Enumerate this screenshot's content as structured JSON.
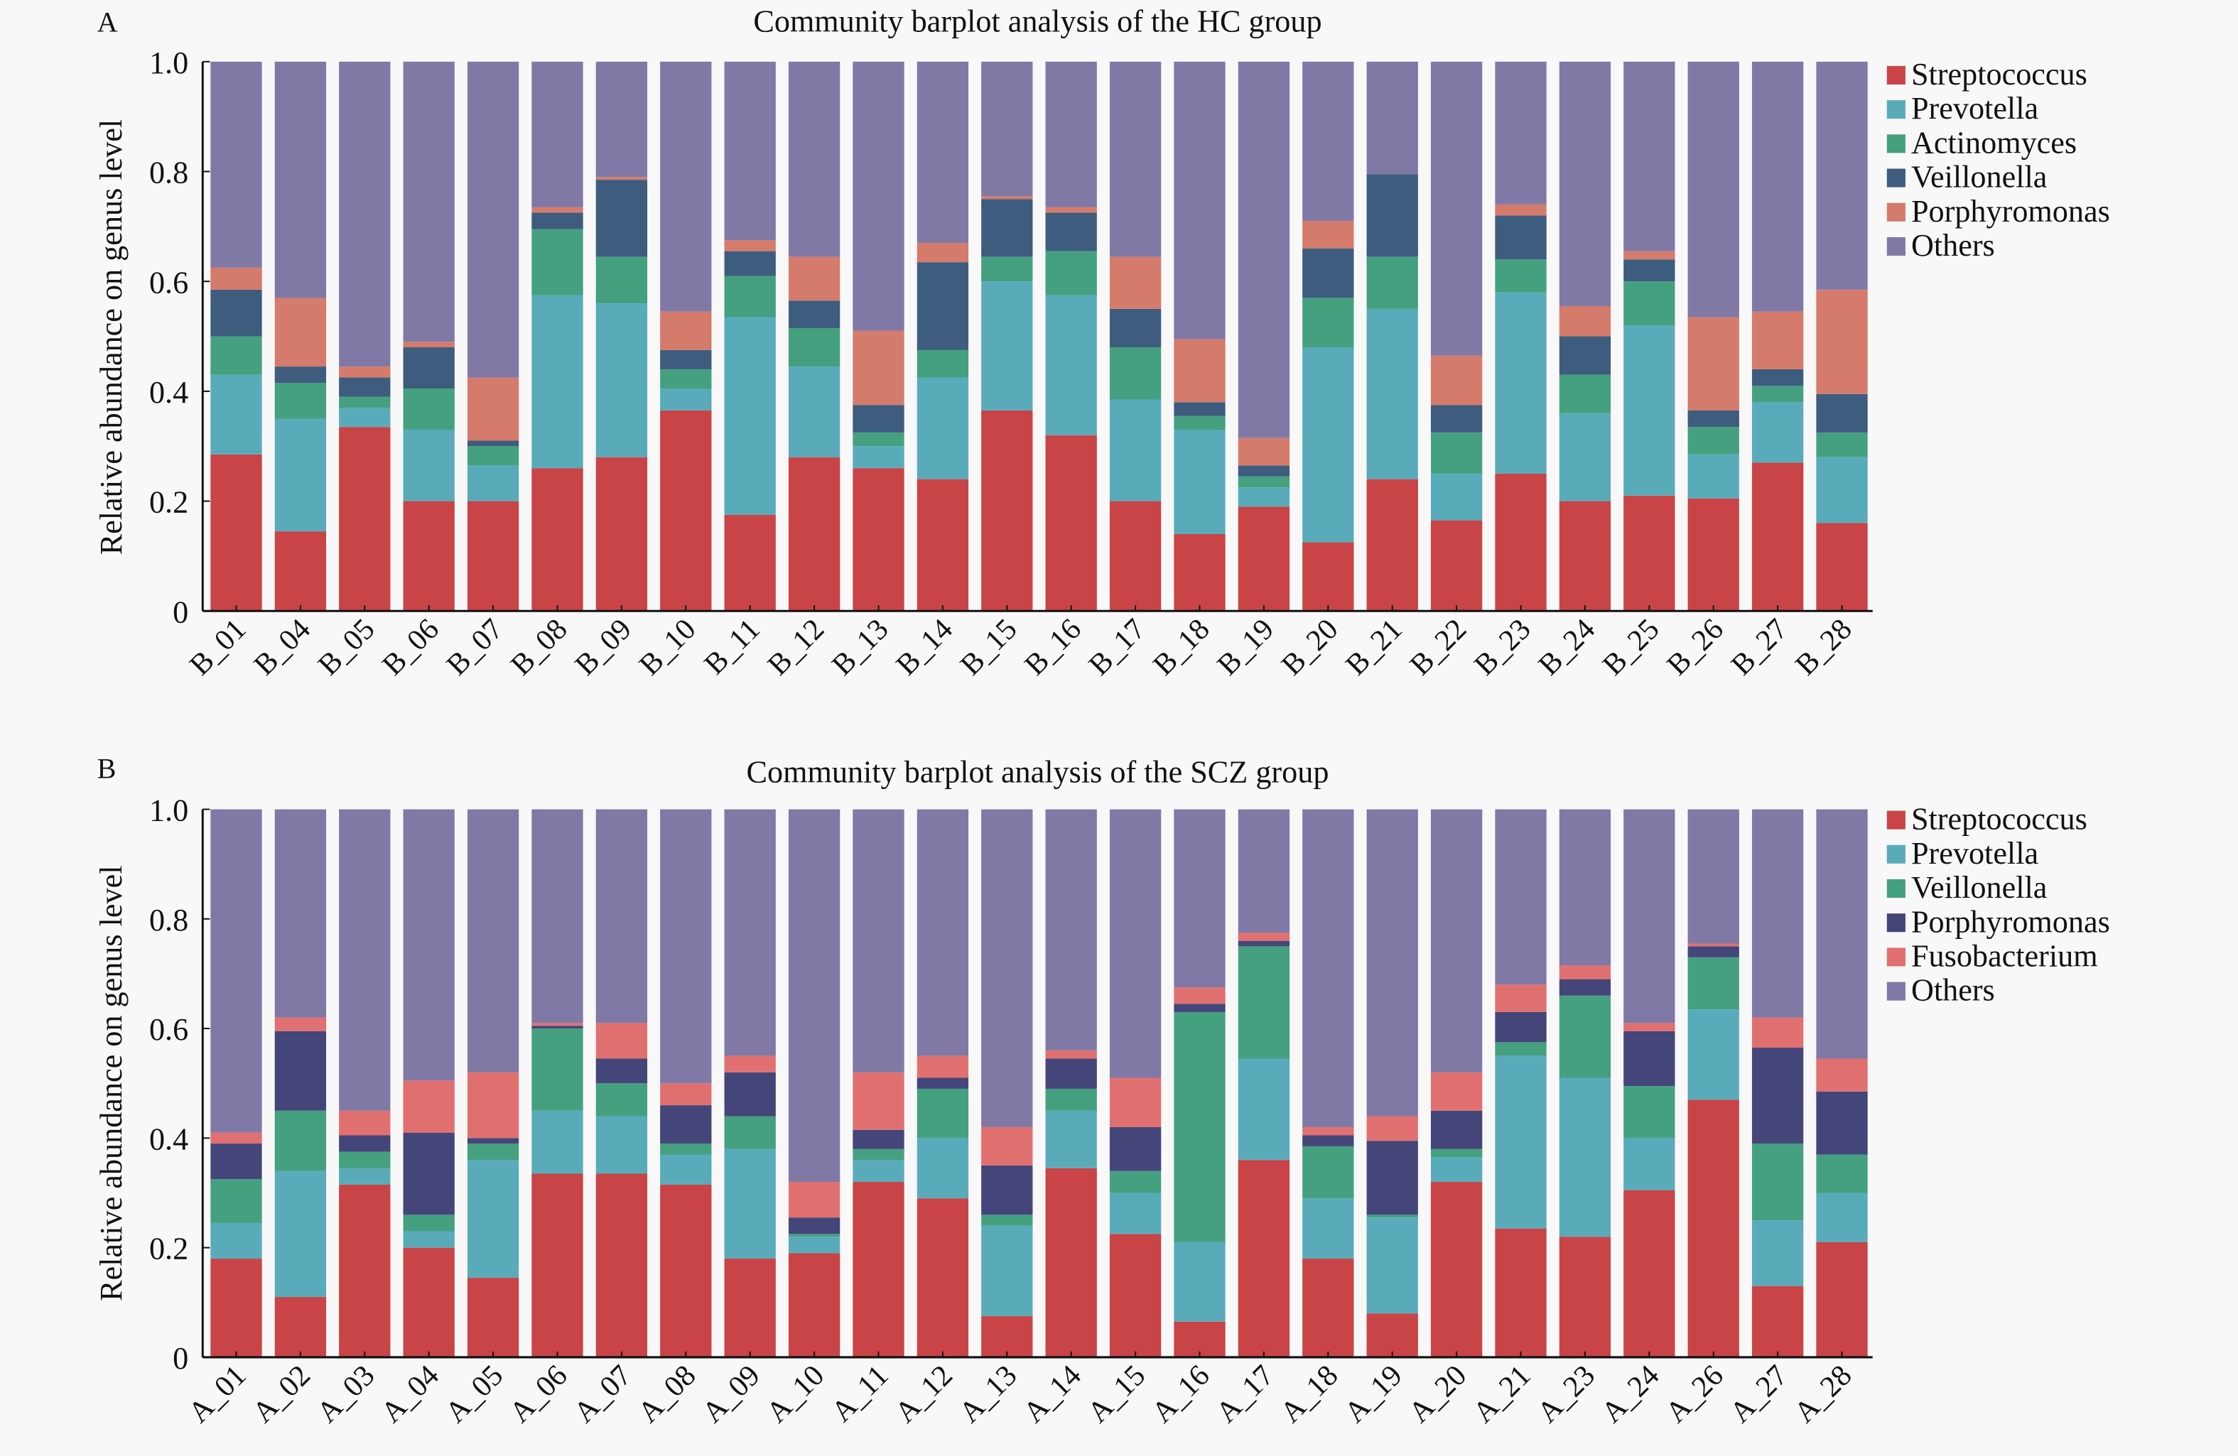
{
  "chart_data": [
    {
      "type": "bar",
      "stacked": true,
      "panel_label": "A",
      "title": "Community barplot analysis of the HC group",
      "xlabel": "",
      "ylabel": "Relative abundance on genus level",
      "ylim": [
        0,
        1.0
      ],
      "yticks": [
        "0",
        "0.2",
        "0.4",
        "0.6",
        "0.8",
        "1.0"
      ],
      "ytick_values": [
        0,
        0.2,
        0.4,
        0.6,
        0.8,
        1.0
      ],
      "legend_position": "right",
      "categories": [
        "B_01",
        "B_04",
        "B_05",
        "B_06",
        "B_07",
        "B_08",
        "B_09",
        "B_10",
        "B_11",
        "B_12",
        "B_13",
        "B_14",
        "B_15",
        "B_16",
        "B_17",
        "B_18",
        "B_19",
        "B_20",
        "B_21",
        "B_22",
        "B_23",
        "B_24",
        "B_25",
        "B_26",
        "B_27",
        "B_28"
      ],
      "series": [
        {
          "name": "Streptococcus",
          "color": "#c84446",
          "values": [
            0.285,
            0.145,
            0.335,
            0.2,
            0.2,
            0.26,
            0.28,
            0.365,
            0.175,
            0.28,
            0.26,
            0.24,
            0.365,
            0.32,
            0.2,
            0.14,
            0.19,
            0.125,
            0.24,
            0.165,
            0.25,
            0.2,
            0.21,
            0.205,
            0.27,
            0.16
          ]
        },
        {
          "name": "Prevotella",
          "color": "#5aabba",
          "values": [
            0.145,
            0.205,
            0.035,
            0.13,
            0.065,
            0.315,
            0.28,
            0.04,
            0.36,
            0.165,
            0.04,
            0.185,
            0.235,
            0.255,
            0.185,
            0.19,
            0.035,
            0.355,
            0.31,
            0.085,
            0.33,
            0.16,
            0.31,
            0.08,
            0.11,
            0.12
          ]
        },
        {
          "name": "Actinomyces",
          "color": "#45a080",
          "values": [
            0.07,
            0.065,
            0.02,
            0.075,
            0.035,
            0.12,
            0.085,
            0.035,
            0.075,
            0.07,
            0.025,
            0.05,
            0.045,
            0.08,
            0.095,
            0.025,
            0.02,
            0.09,
            0.095,
            0.075,
            0.06,
            0.07,
            0.08,
            0.05,
            0.03,
            0.045
          ]
        },
        {
          "name": "Veillonella",
          "color": "#3d5c7e",
          "values": [
            0.085,
            0.03,
            0.035,
            0.075,
            0.01,
            0.03,
            0.14,
            0.035,
            0.045,
            0.05,
            0.05,
            0.16,
            0.105,
            0.07,
            0.07,
            0.025,
            0.02,
            0.09,
            0.15,
            0.05,
            0.08,
            0.07,
            0.04,
            0.03,
            0.03,
            0.07
          ]
        },
        {
          "name": "Porphyromonas",
          "color": "#d47b6c",
          "values": [
            0.04,
            0.125,
            0.02,
            0.01,
            0.115,
            0.01,
            0.005,
            0.07,
            0.02,
            0.08,
            0.135,
            0.035,
            0.005,
            0.01,
            0.095,
            0.115,
            0.05,
            0.05,
            0.0,
            0.09,
            0.02,
            0.055,
            0.015,
            0.17,
            0.105,
            0.19
          ]
        },
        {
          "name": "Others",
          "color": "#8079a6",
          "values": [
            0.375,
            0.43,
            0.555,
            0.51,
            0.575,
            0.265,
            0.21,
            0.455,
            0.325,
            0.355,
            0.49,
            0.33,
            0.245,
            0.265,
            0.355,
            0.505,
            0.685,
            0.29,
            0.205,
            0.535,
            0.26,
            0.445,
            0.345,
            0.465,
            0.455,
            0.415
          ]
        }
      ]
    },
    {
      "type": "bar",
      "stacked": true,
      "panel_label": "B",
      "title": "Community barplot analysis of the SCZ group",
      "xlabel": "",
      "ylabel": "Relative abundance on genus level",
      "ylim": [
        0,
        1.0
      ],
      "yticks": [
        "0",
        "0.2",
        "0.4",
        "0.6",
        "0.8",
        "1.0"
      ],
      "ytick_values": [
        0,
        0.2,
        0.4,
        0.6,
        0.8,
        1.0
      ],
      "legend_position": "right",
      "categories": [
        "A_01",
        "A_02",
        "A_03",
        "A_04",
        "A_05",
        "A_06",
        "A_07",
        "A_08",
        "A_09",
        "A_10",
        "A_11",
        "A_12",
        "A_13",
        "A_14",
        "A_15",
        "A_16",
        "A_17",
        "A_18",
        "A_19",
        "A_20",
        "A_21",
        "A_23",
        "A_24",
        "A_26",
        "A_27",
        "A_28"
      ],
      "series": [
        {
          "name": "Streptococcus",
          "color": "#c84446",
          "values": [
            0.18,
            0.11,
            0.315,
            0.2,
            0.145,
            0.335,
            0.335,
            0.315,
            0.18,
            0.19,
            0.32,
            0.29,
            0.075,
            0.345,
            0.225,
            0.065,
            0.36,
            0.18,
            0.08,
            0.32,
            0.235,
            0.22,
            0.305,
            0.47,
            0.13,
            0.21
          ]
        },
        {
          "name": "Prevotella",
          "color": "#5aabba",
          "values": [
            0.065,
            0.23,
            0.03,
            0.03,
            0.215,
            0.115,
            0.105,
            0.055,
            0.2,
            0.03,
            0.04,
            0.11,
            0.165,
            0.105,
            0.075,
            0.145,
            0.185,
            0.11,
            0.175,
            0.045,
            0.315,
            0.29,
            0.095,
            0.165,
            0.12,
            0.09
          ]
        },
        {
          "name": "Veillonella",
          "color": "#45a080",
          "values": [
            0.08,
            0.11,
            0.03,
            0.03,
            0.03,
            0.15,
            0.06,
            0.02,
            0.06,
            0.005,
            0.02,
            0.09,
            0.02,
            0.04,
            0.04,
            0.42,
            0.205,
            0.095,
            0.005,
            0.015,
            0.025,
            0.15,
            0.095,
            0.095,
            0.14,
            0.07
          ]
        },
        {
          "name": "Porphyromonas",
          "color": "#44467a",
          "values": [
            0.065,
            0.145,
            0.03,
            0.15,
            0.01,
            0.005,
            0.045,
            0.07,
            0.08,
            0.03,
            0.035,
            0.02,
            0.09,
            0.055,
            0.08,
            0.015,
            0.01,
            0.02,
            0.135,
            0.07,
            0.055,
            0.03,
            0.1,
            0.02,
            0.175,
            0.115
          ]
        },
        {
          "name": "Fusobacterium",
          "color": "#e07070",
          "values": [
            0.02,
            0.025,
            0.045,
            0.095,
            0.12,
            0.005,
            0.065,
            0.04,
            0.03,
            0.065,
            0.105,
            0.04,
            0.07,
            0.015,
            0.09,
            0.03,
            0.015,
            0.015,
            0.045,
            0.07,
            0.05,
            0.025,
            0.015,
            0.005,
            0.055,
            0.06
          ]
        },
        {
          "name": "Others",
          "color": "#8079a6",
          "values": [
            0.59,
            0.38,
            0.55,
            0.495,
            0.48,
            0.39,
            0.39,
            0.5,
            0.45,
            0.68,
            0.48,
            0.45,
            0.58,
            0.44,
            0.49,
            0.325,
            0.225,
            0.58,
            0.56,
            0.48,
            0.32,
            0.285,
            0.39,
            0.245,
            0.38,
            0.455
          ]
        }
      ]
    }
  ]
}
